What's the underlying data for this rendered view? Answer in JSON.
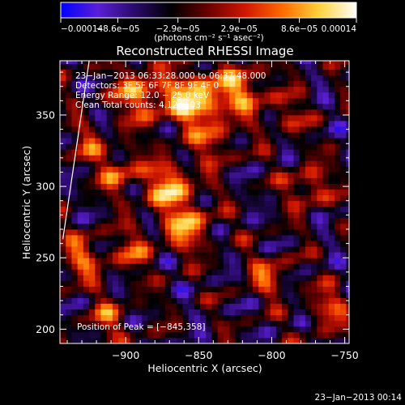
{
  "colorbar": {
    "tick_labels": [
      "−0.00014",
      "−8.6e−05",
      "−2.9e−05",
      "2.9e−05",
      "8.6e−05",
      "0.00014"
    ],
    "tick_values": [
      -0.00014,
      -8.6e-05,
      -2.9e-05,
      2.9e-05,
      8.6e-05,
      0.00014
    ],
    "range": [
      -0.00014,
      0.00014
    ],
    "units_label": "(photons cm⁻² s⁻¹ asec⁻²)",
    "colors": [
      "#0000ff",
      "#5a1fd6",
      "#2a0a6a",
      "#000000",
      "#6a0000",
      "#d01800",
      "#ff6a00",
      "#ffd23c",
      "#ffffff"
    ]
  },
  "chart_data": {
    "type": "heatmap",
    "title": "Reconstructed RHESSI Image",
    "xlabel": "Heliocentric X (arcsec)",
    "ylabel": "Heliocentric Y (arcsec)",
    "x_ticks": [
      -900,
      -850,
      -800,
      -750
    ],
    "y_ticks": [
      200,
      250,
      300,
      350
    ],
    "x_tick_labels": [
      "−900",
      "−850",
      "−800",
      "−750"
    ],
    "y_tick_labels": [
      "200",
      "250",
      "300",
      "350"
    ],
    "xlim": [
      -945,
      -747
    ],
    "ylim": [
      190,
      388
    ],
    "peak_position": [
      -845,
      358
    ],
    "limb_line": [
      [
        -943,
        263
      ],
      [
        -925,
        388
      ]
    ],
    "grid": false,
    "annotations": {
      "time_range": "23−Jan−2013 06:33:28.000 to 06:37:48.000",
      "detectors": "Detectors: 3F 5F 6F 7F 8F 9F 4F 0",
      "energy_range": "Energy Range: 12.0 − 25.0 keV",
      "clean": "Clean    Total counts: 4.12e+03",
      "peak": "Position of Peak = [−845,358]"
    }
  },
  "footer": {
    "timestamp": "23−Jan−2013 00:14"
  }
}
